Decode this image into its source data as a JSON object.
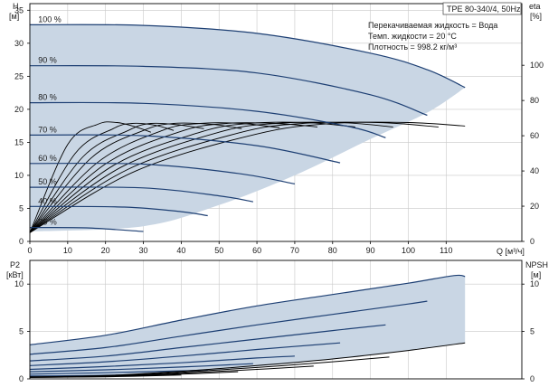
{
  "model_label": "TPE 80-340/4, 50Hz",
  "fluid_info": [
    "Перекачиваемая жидкость = Вода",
    "Темп. жидкости = 20 °C",
    "Плотность = 998.2 кг/м³"
  ],
  "colors": {
    "operating_area": "#c9d6e4",
    "speed_curve": "#1d3f73",
    "efficiency_curve": "#000000",
    "grid": "#c8c8c8"
  },
  "chart_data": [
    {
      "type": "line",
      "ylabel": "H",
      "ylabel_unit": "[м]",
      "y2label": "eta",
      "y2label_unit": "[%]",
      "xlabel": "Q [м³/ч]",
      "xlim": [
        0,
        130
      ],
      "ylim": [
        0,
        36
      ],
      "y2lim": [
        0,
        135
      ],
      "x_ticks": [
        0,
        10,
        20,
        30,
        40,
        50,
        60,
        70,
        80,
        90,
        100,
        110
      ],
      "y_ticks": [
        0,
        5,
        10,
        15,
        20,
        25,
        30,
        35
      ],
      "y2_ticks": [
        0,
        20,
        40,
        60,
        80,
        100
      ],
      "grid": true,
      "speed_series": [
        {
          "name": "100 %",
          "x": [
            0,
            30,
            60,
            90,
            105,
            115
          ],
          "y": [
            32.8,
            32.7,
            31.5,
            28.5,
            26.0,
            23.3
          ]
        },
        {
          "name": "90 %",
          "x": [
            0,
            30,
            60,
            90,
            105
          ],
          "y": [
            26.6,
            26.5,
            25.5,
            22.2,
            19.1
          ]
        },
        {
          "name": "80 %",
          "x": [
            0,
            30,
            60,
            85,
            94
          ],
          "y": [
            21.0,
            20.9,
            19.7,
            17.3,
            15.7
          ]
        },
        {
          "name": "70 %",
          "x": [
            0,
            30,
            60,
            82
          ],
          "y": [
            16.1,
            16.0,
            14.5,
            11.9
          ]
        },
        {
          "name": "60 %",
          "x": [
            0,
            30,
            55,
            70
          ],
          "y": [
            11.8,
            11.7,
            10.3,
            8.7
          ]
        },
        {
          "name": "50 %",
          "x": [
            0,
            30,
            50,
            59
          ],
          "y": [
            8.2,
            8.1,
            6.9,
            6.0
          ]
        },
        {
          "name": "40 %",
          "x": [
            0,
            25,
            40,
            47
          ],
          "y": [
            5.3,
            5.2,
            4.5,
            3.9
          ]
        },
        {
          "name": "25 %",
          "x": [
            0,
            15,
            30
          ],
          "y": [
            2.1,
            2.05,
            1.5
          ]
        }
      ],
      "area_upper": {
        "x": [
          0,
          30,
          60,
          90,
          105,
          115
        ],
        "y": [
          32.8,
          32.7,
          31.5,
          28.5,
          26.0,
          23.3
        ]
      },
      "area_lower": {
        "x": [
          0,
          30,
          50,
          70,
          90,
          105,
          115
        ],
        "y": [
          1.5,
          2.3,
          5.5,
          10.0,
          15.5,
          19.5,
          23.3
        ]
      },
      "efficiency_series": [
        {
          "x": [
            0,
            10,
            18,
            23,
            28,
            32
          ],
          "eta": [
            5,
            55,
            66.5,
            67.5,
            65,
            62
          ]
        },
        {
          "x": [
            0,
            12,
            22,
            27,
            33,
            38
          ],
          "eta": [
            5,
            50,
            64,
            67,
            66,
            63
          ]
        },
        {
          "x": [
            0,
            14,
            26,
            32,
            40,
            46
          ],
          "eta": [
            5,
            48,
            63,
            67,
            66,
            64
          ]
        },
        {
          "x": [
            0,
            16,
            30,
            38,
            48,
            56
          ],
          "eta": [
            5,
            47,
            63,
            67,
            66.5,
            64
          ]
        },
        {
          "x": [
            0,
            18,
            35,
            45,
            56,
            66
          ],
          "eta": [
            5,
            45,
            63,
            67,
            67,
            64.5
          ]
        },
        {
          "x": [
            0,
            20,
            40,
            52,
            65,
            76
          ],
          "eta": [
            5,
            44,
            62.5,
            67,
            67,
            65
          ]
        },
        {
          "x": [
            0,
            22,
            45,
            58,
            73,
            86
          ],
          "eta": [
            5,
            43,
            62,
            67,
            67.5,
            65
          ]
        },
        {
          "x": [
            0,
            24,
            50,
            65,
            82,
            96
          ],
          "eta": [
            5,
            42,
            62,
            67,
            67.5,
            65
          ]
        },
        {
          "x": [
            0,
            26,
            55,
            72,
            92,
            108
          ],
          "eta": [
            5,
            41,
            61.5,
            67,
            67.5,
            65
          ]
        },
        {
          "x": [
            0,
            28,
            60,
            80,
            100,
            115
          ],
          "eta": [
            5,
            40,
            61,
            67,
            67.5,
            65.5
          ]
        }
      ]
    },
    {
      "type": "line",
      "ylabel": "P2",
      "ylabel_unit": "[кВт]",
      "y2label": "NPSH",
      "y2label_unit": "[м]",
      "xlim": [
        0,
        130
      ],
      "ylim": [
        0,
        12.5
      ],
      "y2lim": [
        0,
        12.5
      ],
      "y_ticks": [
        0,
        5,
        10
      ],
      "y2_ticks": [
        0,
        5,
        10
      ],
      "grid": true,
      "power_series": [
        {
          "name": "100 %",
          "x": [
            0,
            20,
            40,
            60,
            80,
            100,
            112,
            115
          ],
          "y": [
            3.6,
            4.6,
            6.2,
            7.7,
            8.9,
            10.1,
            10.9,
            10.8
          ]
        },
        {
          "name": "90 %",
          "x": [
            0,
            20,
            40,
            60,
            80,
            100,
            105
          ],
          "y": [
            2.6,
            3.3,
            4.5,
            5.7,
            6.8,
            7.9,
            8.2
          ]
        },
        {
          "name": "80 %",
          "x": [
            0,
            20,
            40,
            60,
            80,
            94
          ],
          "y": [
            1.9,
            2.4,
            3.3,
            4.2,
            5.1,
            5.7
          ]
        },
        {
          "name": "70 %",
          "x": [
            0,
            20,
            40,
            60,
            82
          ],
          "y": [
            1.4,
            1.8,
            2.4,
            3.1,
            3.8
          ]
        },
        {
          "name": "60 %",
          "x": [
            0,
            20,
            40,
            60,
            70
          ],
          "y": [
            1.0,
            1.3,
            1.7,
            2.2,
            2.4
          ]
        },
        {
          "name": "50 %",
          "x": [
            0,
            20,
            40,
            59
          ],
          "y": [
            0.75,
            0.95,
            1.25,
            1.6
          ]
        },
        {
          "name": "40 %",
          "x": [
            0,
            20,
            40,
            47
          ],
          "y": [
            0.5,
            0.65,
            0.85,
            0.95
          ]
        },
        {
          "name": "25 %",
          "x": [
            0,
            15,
            30
          ],
          "y": [
            0.3,
            0.35,
            0.45
          ]
        }
      ],
      "area_upper": {
        "x": [
          0,
          20,
          40,
          60,
          80,
          100,
          112,
          115
        ],
        "y": [
          3.6,
          4.6,
          6.2,
          7.7,
          8.9,
          10.1,
          10.9,
          10.8
        ]
      },
      "area_lower": {
        "x": [
          0,
          30,
          60,
          90,
          115
        ],
        "y": [
          0.3,
          0.5,
          1.3,
          2.5,
          3.8
        ]
      },
      "npsh_series": [
        {
          "x": [
            0,
            20,
            40,
            60,
            80,
            100,
            115
          ],
          "y": [
            0.2,
            0.35,
            0.8,
            1.4,
            2.1,
            3.0,
            3.8
          ]
        },
        {
          "x": [
            0,
            20,
            40,
            60,
            80,
            95
          ],
          "y": [
            0.2,
            0.3,
            0.7,
            1.2,
            1.8,
            2.3
          ]
        },
        {
          "x": [
            0,
            20,
            40,
            60,
            75
          ],
          "y": [
            0.2,
            0.28,
            0.6,
            1.0,
            1.35
          ]
        },
        {
          "x": [
            0,
            20,
            40,
            55
          ],
          "y": [
            0.15,
            0.25,
            0.5,
            0.75
          ]
        },
        {
          "x": [
            0,
            20,
            40
          ],
          "y": [
            0.15,
            0.22,
            0.4
          ]
        }
      ]
    }
  ]
}
